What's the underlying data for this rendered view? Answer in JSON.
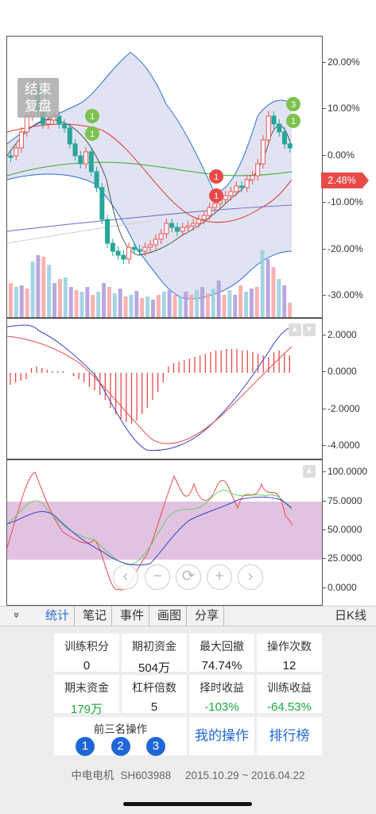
{
  "controls": {
    "end_replay": "结束\n复盘"
  },
  "main_chart": {
    "axis_ticks": [
      "20.00%",
      "10.00%",
      "0.00%",
      "-10.00%",
      "-20.00%",
      "-30.00%"
    ],
    "axis_values": [
      20,
      10,
      0,
      -10,
      -20,
      -30
    ],
    "current_value": "2.48%",
    "trade_markers": [
      "1",
      "1",
      "1",
      "1",
      "3",
      "1"
    ]
  },
  "macd_chart": {
    "axis_ticks": [
      "2.0000",
      "0.0000",
      "-2.0000",
      "-4.0000"
    ]
  },
  "kdj_chart": {
    "axis_ticks": [
      "100.0000",
      "75.0000",
      "50.0000",
      "25.0000",
      "0.0000"
    ]
  },
  "zoom_controls": [
    "‹",
    "−",
    "⟳",
    "+",
    "›"
  ],
  "tabs": {
    "collapse": "»",
    "items": [
      "统计",
      "笔记",
      "事件",
      "画图",
      "分享"
    ],
    "active": "统计",
    "kline_type": "日K线"
  },
  "stats": {
    "training_points_label": "训练积分",
    "training_points": "0",
    "initial_funds_label": "期初资金",
    "initial_funds": "504万",
    "max_drawdown_label": "最大回撤",
    "max_drawdown": "74.74%",
    "op_count_label": "操作次数",
    "op_count": "12",
    "final_funds_label": "期末资金",
    "final_funds": "179万",
    "leverage_label": "杠杆倍数",
    "leverage": "5",
    "timing_return_label": "择时收益",
    "timing_return": "-103%",
    "training_return_label": "训练收益",
    "training_return": "-64.53%",
    "top3_label": "前三名操作",
    "ranks": [
      "1",
      "2",
      "3"
    ],
    "my_ops": "我的操作",
    "leaderboard": "排行榜"
  },
  "stock": {
    "name": "中电电机",
    "code": "SH603988",
    "period": "2015.10.29 ~ 2016.04.22"
  },
  "colors": {
    "up": "#ef5350",
    "down": "#26a69a",
    "blue": "#1f67d6",
    "green": "#1aaa3c"
  }
}
